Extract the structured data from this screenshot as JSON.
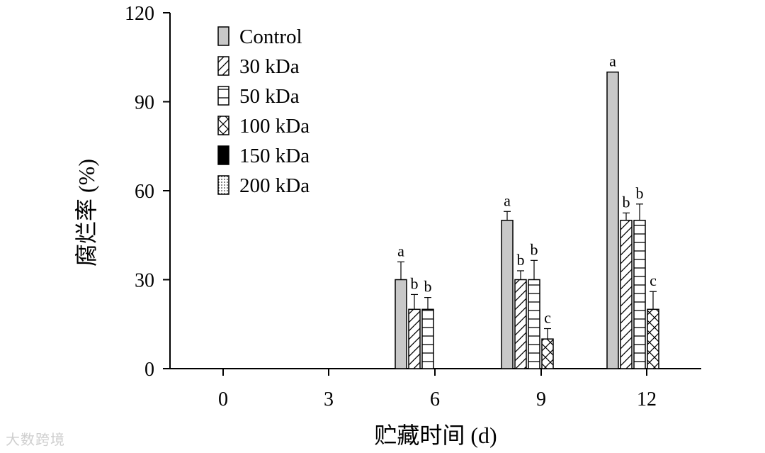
{
  "chart_data": {
    "type": "bar",
    "xlabel": "贮藏时间 (d)",
    "ylabel": "腐烂率 (%)",
    "ylim": [
      0,
      120
    ],
    "yticks": [
      0,
      30,
      60,
      90,
      120
    ],
    "categories": [
      "0",
      "3",
      "6",
      "9",
      "12"
    ],
    "legend_position": "top-left",
    "grid": false,
    "series": [
      {
        "name": "Control",
        "pattern": "solid-gray",
        "values": [
          0,
          0,
          30,
          50,
          100
        ],
        "errors": [
          0,
          0,
          6,
          3,
          0
        ],
        "labels": [
          "",
          "",
          "a",
          "a",
          "a"
        ]
      },
      {
        "name": "30 kDa",
        "pattern": "diagonal",
        "values": [
          0,
          0,
          20,
          30,
          50
        ],
        "errors": [
          0,
          0,
          5,
          3,
          2.5
        ],
        "labels": [
          "",
          "",
          "b",
          "b",
          "b"
        ]
      },
      {
        "name": "50 kDa",
        "pattern": "horizontal",
        "values": [
          0,
          0,
          20,
          30,
          50
        ],
        "errors": [
          0,
          0,
          4,
          6.5,
          5.5
        ],
        "labels": [
          "",
          "",
          "b",
          "b",
          "b"
        ]
      },
      {
        "name": "100 kDa",
        "pattern": "cross",
        "values": [
          0,
          0,
          0,
          10,
          20
        ],
        "errors": [
          0,
          0,
          0,
          3.5,
          6
        ],
        "labels": [
          "",
          "",
          "",
          "c",
          "c"
        ]
      },
      {
        "name": "150 kDa",
        "pattern": "black",
        "values": [
          0,
          0,
          0,
          0,
          0
        ],
        "errors": [
          0,
          0,
          0,
          0,
          0
        ],
        "labels": [
          "",
          "",
          "",
          "",
          ""
        ]
      },
      {
        "name": "200 kDa",
        "pattern": "dotted",
        "values": [
          0,
          0,
          0,
          0,
          0
        ],
        "errors": [
          0,
          0,
          0,
          0,
          0
        ],
        "labels": [
          "",
          "",
          "",
          "",
          ""
        ]
      }
    ]
  },
  "watermark": {
    "text": "大数跨境"
  },
  "colors": {
    "control_fill": "#c8c8c8",
    "stroke": "#000000"
  }
}
